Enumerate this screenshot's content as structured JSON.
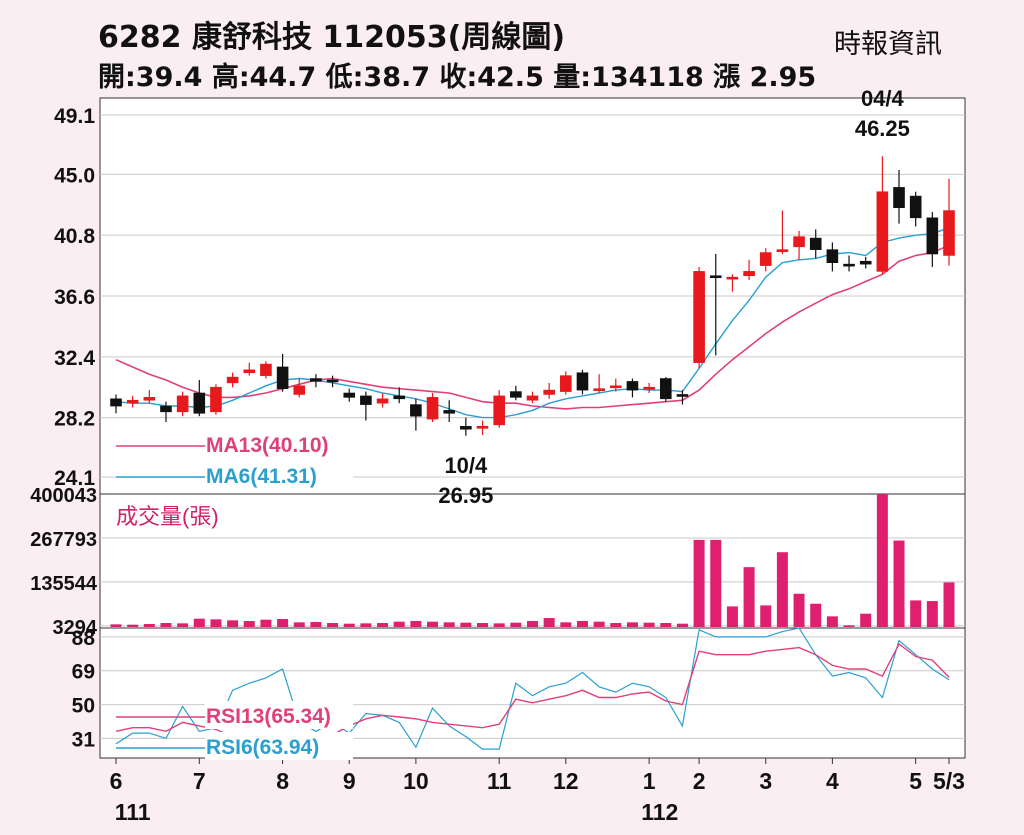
{
  "header": {
    "title": "6282  康舒科技 112053(周線圖)",
    "source": "時報資訊",
    "stats": "開:39.4 高:44.7 低:38.7 收:42.5 量:134118 漲 2.95"
  },
  "chart_data": {
    "type": "candlestick",
    "price_axis": {
      "ticks": [
        49.1,
        45.0,
        40.8,
        36.6,
        32.4,
        28.2,
        24.1
      ],
      "ylim": [
        24.1,
        49.1
      ]
    },
    "volume_axis": {
      "title": "成交量(張)",
      "ticks": [
        400043,
        267793,
        135544,
        3294
      ],
      "ylim": [
        0,
        400043
      ]
    },
    "rsi_axis": {
      "ticks": [
        88,
        69,
        50,
        31
      ],
      "ylim": [
        20,
        93
      ]
    },
    "x_labels": [
      {
        "label": "6",
        "i": 0
      },
      {
        "label": "7",
        "i": 5
      },
      {
        "label": "8",
        "i": 10
      },
      {
        "label": "9",
        "i": 14
      },
      {
        "label": "10",
        "i": 18
      },
      {
        "label": "11",
        "i": 23
      },
      {
        "label": "12",
        "i": 27
      },
      {
        "label": "1",
        "i": 32
      },
      {
        "label": "2",
        "i": 35
      },
      {
        "label": "3",
        "i": 39
      },
      {
        "label": "4",
        "i": 43
      },
      {
        "label": "5",
        "i": 48
      },
      {
        "label": "5/3",
        "i": 50
      }
    ],
    "year_labels": [
      {
        "label": "111",
        "i": 1
      },
      {
        "label": "112",
        "i": 33
      }
    ],
    "annotations": [
      {
        "lines": [
          "04/4",
          "46.25"
        ],
        "i": 46,
        "price": 46.25,
        "pos": "above"
      },
      {
        "lines": [
          "10/4",
          "26.95"
        ],
        "i": 21,
        "price": 26.95,
        "pos": "below"
      }
    ],
    "legend_ma": [
      {
        "name": "MA13(40.10)",
        "color": "#e0407a"
      },
      {
        "name": "MA6(41.31)",
        "color": "#2a9fd0"
      }
    ],
    "legend_rsi": [
      {
        "name": "RSI13(65.34)",
        "color": "#e0407a"
      },
      {
        "name": "RSI6(63.94)",
        "color": "#2a9fd0"
      }
    ],
    "ohlc": [
      [
        29.5,
        29.0,
        29.8,
        28.5
      ],
      [
        29.2,
        29.4,
        29.7,
        28.9
      ],
      [
        29.4,
        29.6,
        30.1,
        29.2
      ],
      [
        29.0,
        28.6,
        29.3,
        27.9
      ],
      [
        28.6,
        29.7,
        30.0,
        28.3
      ],
      [
        29.9,
        28.5,
        30.8,
        28.3
      ],
      [
        28.6,
        30.3,
        30.5,
        28.4
      ],
      [
        30.6,
        31.0,
        31.3,
        30.3
      ],
      [
        31.3,
        31.5,
        32.0,
        31.1
      ],
      [
        31.1,
        31.9,
        32.1,
        30.9
      ],
      [
        31.7,
        30.2,
        32.6,
        30.0
      ],
      [
        29.8,
        30.4,
        30.9,
        29.6
      ],
      [
        30.9,
        30.7,
        31.2,
        30.3
      ],
      [
        30.8,
        30.7,
        31.1,
        30.3
      ],
      [
        29.9,
        29.6,
        30.2,
        29.3
      ],
      [
        29.7,
        29.1,
        30.0,
        28.0
      ],
      [
        29.2,
        29.5,
        29.9,
        28.9
      ],
      [
        29.7,
        29.5,
        30.3,
        29.2
      ],
      [
        29.1,
        28.3,
        29.5,
        27.3
      ],
      [
        28.1,
        29.6,
        29.9,
        27.9
      ],
      [
        28.7,
        28.5,
        29.4,
        27.9
      ],
      [
        27.6,
        27.4,
        28.2,
        26.95
      ],
      [
        27.6,
        27.6,
        28.0,
        27.0
      ],
      [
        27.7,
        29.7,
        30.1,
        27.5
      ],
      [
        30.0,
        29.6,
        30.4,
        29.4
      ],
      [
        29.4,
        29.7,
        30.0,
        29.2
      ],
      [
        29.8,
        30.1,
        30.6,
        29.5
      ],
      [
        30.0,
        31.1,
        31.4,
        29.8
      ],
      [
        31.3,
        30.1,
        31.5,
        29.8
      ],
      [
        30.1,
        30.2,
        31.2,
        29.9
      ],
      [
        30.3,
        30.4,
        30.9,
        30.0
      ],
      [
        30.7,
        30.1,
        30.9,
        29.6
      ],
      [
        30.2,
        30.3,
        30.6,
        29.9
      ],
      [
        30.9,
        29.5,
        31.0,
        29.3
      ],
      [
        29.8,
        29.7,
        30.1,
        29.1
      ],
      [
        32.0,
        38.3,
        38.6,
        31.6
      ],
      [
        38.0,
        37.9,
        39.5,
        32.5
      ],
      [
        37.8,
        37.9,
        38.1,
        36.9
      ],
      [
        38.0,
        38.3,
        39.1,
        37.7
      ],
      [
        38.7,
        39.6,
        39.9,
        38.3
      ],
      [
        39.8,
        39.8,
        42.5,
        39.5
      ],
      [
        40.0,
        40.7,
        41.1,
        39.1
      ],
      [
        40.6,
        39.8,
        41.2,
        39.2
      ],
      [
        39.8,
        38.9,
        40.3,
        38.3
      ],
      [
        38.8,
        38.7,
        39.4,
        38.3
      ],
      [
        39.0,
        38.8,
        39.3,
        38.5
      ],
      [
        38.3,
        43.8,
        46.25,
        38.1
      ],
      [
        44.1,
        42.7,
        45.3,
        41.6
      ],
      [
        43.5,
        42.0,
        43.8,
        41.4
      ],
      [
        42.0,
        39.5,
        42.4,
        38.6
      ],
      [
        39.4,
        42.5,
        44.7,
        38.7
      ]
    ],
    "ma13": [
      32.2,
      31.7,
      31.2,
      30.8,
      30.3,
      29.9,
      29.6,
      29.6,
      29.7,
      29.9,
      30.2,
      30.5,
      30.8,
      30.9,
      30.7,
      30.5,
      30.3,
      30.2,
      30.1,
      30.0,
      29.9,
      29.6,
      29.3,
      29.2,
      29.2,
      29.0,
      28.9,
      28.8,
      28.9,
      28.9,
      29.0,
      29.1,
      29.2,
      29.3,
      29.4,
      30.1,
      31.2,
      32.2,
      33.1,
      34.0,
      34.8,
      35.5,
      36.1,
      36.7,
      37.1,
      37.6,
      38.1,
      39.0,
      39.4,
      39.6,
      40.1
    ],
    "ma6": [
      29.3,
      29.2,
      29.2,
      29.0,
      29.0,
      28.9,
      29.0,
      29.4,
      29.9,
      30.4,
      30.8,
      30.9,
      30.8,
      30.6,
      30.4,
      30.2,
      29.9,
      29.7,
      29.5,
      29.2,
      28.8,
      28.4,
      28.2,
      28.2,
      28.4,
      28.7,
      29.2,
      29.5,
      29.7,
      29.9,
      30.1,
      30.2,
      30.1,
      30.1,
      30.0,
      31.6,
      33.3,
      34.9,
      36.3,
      37.9,
      38.9,
      39.1,
      39.2,
      39.5,
      39.6,
      39.4,
      40.3,
      40.6,
      40.8,
      40.9,
      41.31
    ],
    "volume": [
      8000,
      7000,
      9000,
      12000,
      11000,
      25000,
      23000,
      20000,
      18000,
      22000,
      24000,
      14000,
      15000,
      12000,
      10000,
      11000,
      12000,
      16000,
      18000,
      16000,
      14000,
      13000,
      12000,
      11000,
      13000,
      18000,
      27000,
      14000,
      18000,
      16000,
      12000,
      14000,
      13000,
      12000,
      10000,
      262000,
      262000,
      62000,
      180000,
      65000,
      225000,
      100000,
      70000,
      32000,
      5000,
      40000,
      400043,
      260000,
      80000,
      78000,
      134118
    ],
    "rsi13": [
      35,
      37,
      37,
      35,
      40,
      38,
      36,
      32,
      31,
      28,
      30,
      32,
      31,
      33,
      38,
      42,
      44,
      43,
      42,
      40,
      39,
      38,
      37,
      39,
      53,
      51,
      53,
      55,
      58,
      54,
      54,
      56,
      57,
      52,
      50,
      80,
      78,
      78,
      78,
      80,
      81,
      82,
      78,
      72,
      70,
      70,
      66,
      84,
      77,
      75,
      65.34
    ],
    "rsi6": [
      28,
      34,
      34,
      31,
      49,
      35,
      37,
      58,
      62,
      65,
      70,
      40,
      35,
      40,
      34,
      45,
      44,
      40,
      26,
      48,
      38,
      32,
      25,
      25,
      62,
      55,
      60,
      62,
      68,
      60,
      57,
      62,
      60,
      54,
      38,
      92,
      88,
      88,
      88,
      88,
      91,
      93,
      78,
      66,
      68,
      65,
      54,
      86,
      78,
      70,
      63.94
    ]
  }
}
